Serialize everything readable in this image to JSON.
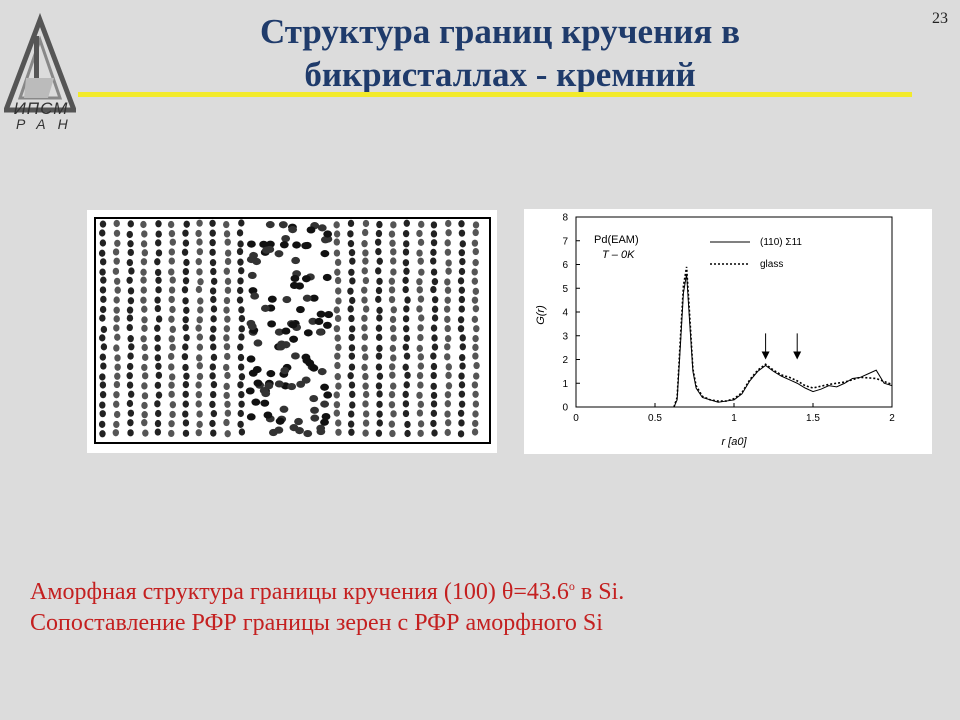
{
  "slide": {
    "number": "23",
    "title_line1": "Структура границ кручения в",
    "title_line2": "бикристаллах - кремний",
    "logo_line1": "ИПСМ",
    "logo_line2": "РАН"
  },
  "caption": {
    "line1_part1": "Аморфная структура границы кручения (100) ",
    "theta": "θ",
    "line1_part2": "=43.6",
    "degree": "о",
    "line1_part3": " в Si.",
    "line2": "Сопоставление РФР границы зерен с РФР аморфного Si"
  },
  "chart_data": {
    "type": "line",
    "title": "",
    "annotation_line1": "Pd(EAM)",
    "annotation_line2": "T – 0K",
    "xlabel": "r [a0]",
    "ylabel": "G(r)",
    "xlim": [
      0,
      2
    ],
    "ylim": [
      0,
      8
    ],
    "xticks": [
      "0",
      "0.5",
      "1",
      "1.5",
      "2"
    ],
    "yticks": [
      "0",
      "1",
      "2",
      "3",
      "4",
      "5",
      "6",
      "7",
      "8"
    ],
    "legend_position": "top-right",
    "series": [
      {
        "name": "(110) Σ11",
        "style": "solid",
        "x": [
          0.62,
          0.64,
          0.66,
          0.68,
          0.7,
          0.72,
          0.74,
          0.76,
          0.8,
          0.85,
          0.9,
          0.95,
          1.0,
          1.05,
          1.1,
          1.15,
          1.2,
          1.25,
          1.3,
          1.35,
          1.4,
          1.45,
          1.5,
          1.55,
          1.6,
          1.65,
          1.7,
          1.75,
          1.8,
          1.85,
          1.9,
          1.95,
          2.0
        ],
        "values": [
          0,
          0.3,
          2.5,
          4.8,
          5.6,
          3.5,
          1.5,
          0.8,
          0.4,
          0.3,
          0.2,
          0.25,
          0.3,
          0.55,
          1.1,
          1.5,
          1.75,
          1.5,
          1.3,
          1.15,
          1.0,
          0.8,
          0.65,
          0.75,
          0.9,
          0.85,
          1.0,
          1.2,
          1.25,
          1.4,
          1.55,
          1.0,
          0.9
        ]
      },
      {
        "name": "glass",
        "style": "dotted",
        "x": [
          0.62,
          0.64,
          0.66,
          0.68,
          0.7,
          0.72,
          0.74,
          0.76,
          0.8,
          0.85,
          0.9,
          0.95,
          1.0,
          1.05,
          1.1,
          1.15,
          1.2,
          1.25,
          1.3,
          1.35,
          1.4,
          1.45,
          1.5,
          1.6,
          1.7,
          1.8,
          1.9,
          2.0
        ],
        "values": [
          0,
          0.4,
          2.8,
          5.1,
          5.9,
          3.8,
          1.6,
          0.9,
          0.45,
          0.3,
          0.25,
          0.25,
          0.35,
          0.6,
          1.15,
          1.55,
          1.8,
          1.55,
          1.35,
          1.25,
          1.1,
          0.9,
          0.8,
          0.95,
          1.05,
          1.25,
          1.2,
          0.95
        ]
      }
    ],
    "arrow_x": [
      1.2,
      1.4
    ]
  }
}
